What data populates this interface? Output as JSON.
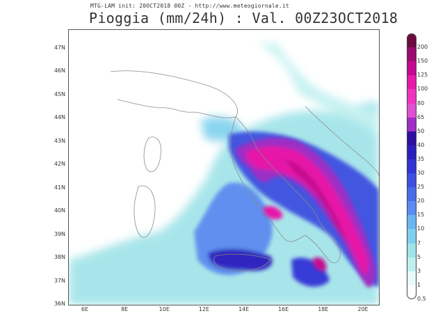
{
  "header": {
    "model_line": "MTG-LAM init: 20OCT2018 00Z - http://www.meteogiornale.it",
    "title": "Pioggia (mm/24h) : Val. 00Z23OCT2018"
  },
  "map": {
    "latitudes": [
      "47N",
      "46N",
      "45N",
      "44N",
      "43N",
      "42N",
      "41N",
      "40N",
      "39N",
      "38N",
      "37N",
      "36N"
    ],
    "longitudes": [
      "6E",
      "8E",
      "10E",
      "12E",
      "14E",
      "16E",
      "18E",
      "20E"
    ],
    "lat_range": [
      36,
      47.9
    ],
    "lon_range": [
      5.0,
      20.5
    ],
    "heavy_rain_color": "#cc0099",
    "moderate_rain_color": "#3b4bd8",
    "light_rain_color": "#9fe3e8"
  },
  "legend": {
    "labels": [
      "200",
      "150",
      "125",
      "100",
      "80",
      "65",
      "50",
      "40",
      "35",
      "30",
      "25",
      "20",
      "15",
      "10",
      "7",
      "5",
      "3",
      "1",
      "0.5"
    ],
    "colors": [
      "#6e0b3f",
      "#9b0b6e",
      "#c4088f",
      "#e619a8",
      "#f033c0",
      "#e050d2",
      "#9e2ec4",
      "#2d10a0",
      "#2a1fbd",
      "#3333d6",
      "#3d4fe0",
      "#4a6cea",
      "#5b8cf0",
      "#6ab5f2",
      "#7fd0ee",
      "#9fe3e8",
      "#bff0ef",
      "#e6fafa",
      "#ffffff"
    ]
  }
}
